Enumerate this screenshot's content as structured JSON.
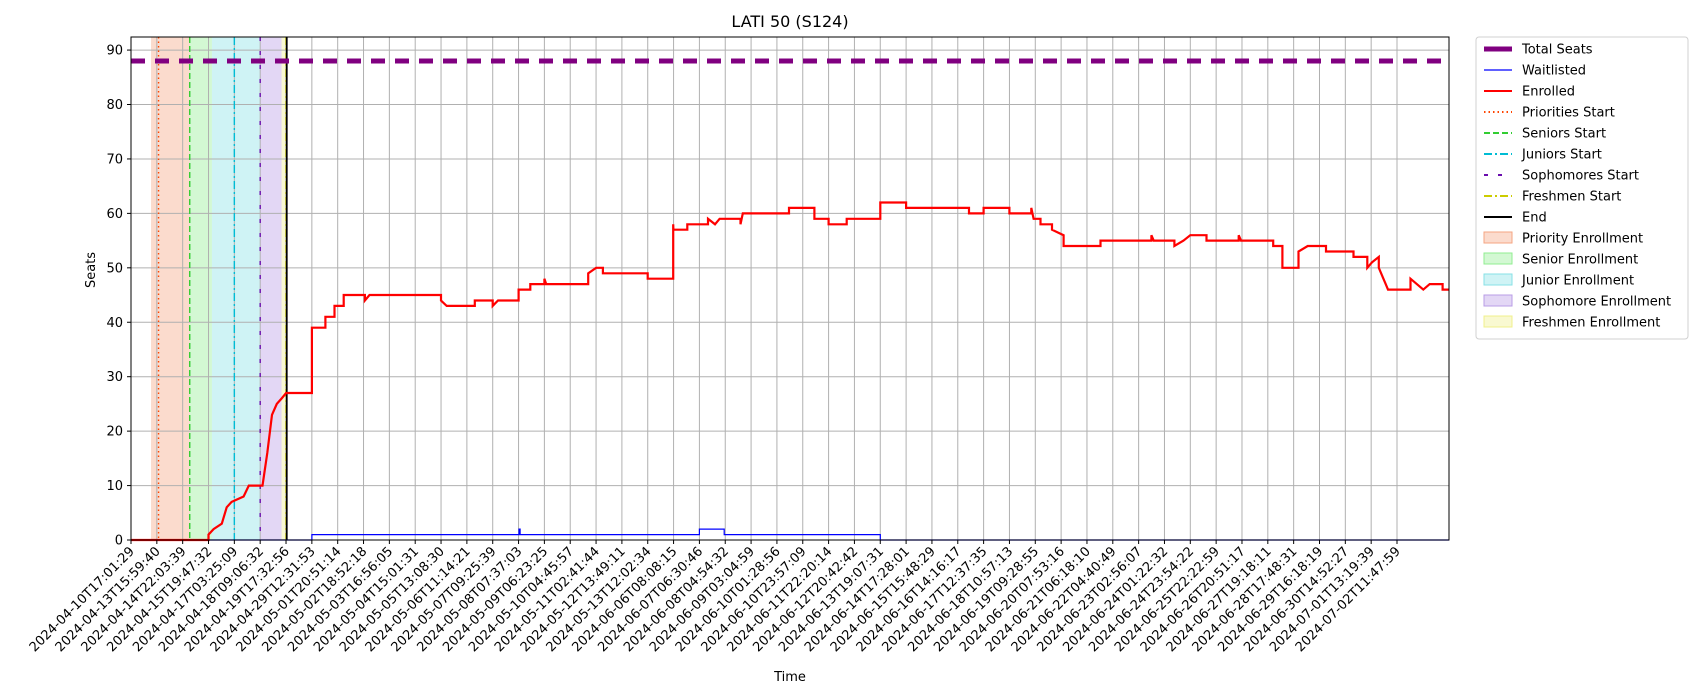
{
  "chart_data": {
    "type": "line",
    "title": "LATI 50 (S124)",
    "xlabel": "Time",
    "ylabel": "Seats",
    "ylim": [
      0,
      92.4
    ],
    "yticks": [
      0,
      10,
      20,
      30,
      40,
      50,
      60,
      70,
      80,
      90
    ],
    "grid": true,
    "legend_position": "outside-right",
    "xlim": [
      "2024-04-10T17:01:29",
      "2024-07-03T04:00:00"
    ],
    "xtick_labels": [
      "2024-04-10T17:01:29",
      "2024-04-13T15:59:40",
      "2024-04-14T22:03:39",
      "2024-04-15T19:47:32",
      "2024-04-17T03:25:09",
      "2024-04-18T09:06:32",
      "2024-04-19T17:32:56",
      "2024-04-29T12:31:53",
      "2024-05-01T20:51:14",
      "2024-05-02T18:52:18",
      "2024-05-03T16:56:05",
      "2024-05-04T15:01:31",
      "2024-05-05T13:08:30",
      "2024-05-06T11:14:21",
      "2024-05-07T09:25:39",
      "2024-05-08T07:37:03",
      "2024-05-09T06:23:25",
      "2024-05-10T04:45:57",
      "2024-05-11T02:41:44",
      "2024-05-12T13:49:11",
      "2024-05-13T12:02:34",
      "2024-06-06T08:08:15",
      "2024-06-07T06:30:46",
      "2024-06-08T04:54:32",
      "2024-06-09T03:04:59",
      "2024-06-10T01:28:56",
      "2024-06-10T23:57:09",
      "2024-06-11T22:20:14",
      "2024-06-12T20:42:42",
      "2024-06-13T19:07:31",
      "2024-06-14T17:28:01",
      "2024-06-15T15:48:29",
      "2024-06-16T14:16:17",
      "2024-06-17T12:37:35",
      "2024-06-18T10:57:13",
      "2024-06-19T09:28:55",
      "2024-06-20T07:53:16",
      "2024-06-21T06:18:10",
      "2024-06-22T04:40:49",
      "2024-06-23T02:56:07",
      "2024-06-24T01:22:32",
      "2024-06-24T23:54:22",
      "2024-06-25T22:22:59",
      "2024-06-26T20:51:17",
      "2024-06-27T19:18:11",
      "2024-06-28T17:48:31",
      "2024-06-29T16:18:19",
      "2024-06-30T14:52:27",
      "2024-07-01T13:19:39",
      "2024-07-02T11:47:59"
    ],
    "series": [
      {
        "name": "Total Seats",
        "color": "#800080",
        "style": "dashed-thick",
        "x": [
          "2024-04-10T17:01:29",
          "2024-07-03T04:00:00"
        ],
        "y": [
          88,
          88
        ]
      },
      {
        "name": "Waitlisted",
        "color": "#0000ff",
        "style": "step",
        "points": [
          [
            "2024-04-10T17:01:29",
            0
          ],
          [
            "2024-04-29T12:31:53",
            0
          ],
          [
            "2024-04-29T12:31:53",
            1
          ],
          [
            "2024-05-08T08:00:00",
            1
          ],
          [
            "2024-05-08T08:00:00",
            2
          ],
          [
            "2024-05-08T09:00:00",
            2
          ],
          [
            "2024-05-08T09:00:00",
            1
          ],
          [
            "2024-06-07T06:30:46",
            1
          ],
          [
            "2024-06-07T06:30:46",
            2
          ],
          [
            "2024-06-08T04:00:00",
            2
          ],
          [
            "2024-06-08T04:00:00",
            1
          ],
          [
            "2024-06-13T19:07:31",
            1
          ],
          [
            "2024-06-13T19:07:31",
            0
          ],
          [
            "2024-07-03T04:00:00",
            0
          ]
        ]
      },
      {
        "name": "Enrolled",
        "color": "#ff0000",
        "style": "step",
        "points": [
          [
            "2024-04-10T17:01:29",
            0
          ],
          [
            "2024-04-15T19:47:32",
            0
          ],
          [
            "2024-04-15T19:47:32",
            1
          ],
          [
            "2024-04-16T02:00:00",
            2
          ],
          [
            "2024-04-16T12:00:00",
            3
          ],
          [
            "2024-04-16T18:00:00",
            6
          ],
          [
            "2024-04-17T00:00:00",
            7
          ],
          [
            "2024-04-17T14:00:00",
            8
          ],
          [
            "2024-04-17T20:00:00",
            10
          ],
          [
            "2024-04-18T12:00:00",
            10
          ],
          [
            "2024-04-18T14:00:00",
            12
          ],
          [
            "2024-04-18T18:00:00",
            16
          ],
          [
            "2024-04-19T00:00:00",
            23
          ],
          [
            "2024-04-19T06:00:00",
            25
          ],
          [
            "2024-04-19T12:00:00",
            26
          ],
          [
            "2024-04-19T18:00:00",
            27
          ],
          [
            "2024-04-29T12:31:53",
            27
          ],
          [
            "2024-04-29T12:31:53",
            39
          ],
          [
            "2024-04-30T18:00:00",
            39
          ],
          [
            "2024-04-30T18:00:00",
            41
          ],
          [
            "2024-05-01T14:00:00",
            41
          ],
          [
            "2024-05-01T14:00:00",
            43
          ],
          [
            "2024-05-02T02:00:00",
            43
          ],
          [
            "2024-05-02T02:00:00",
            45
          ],
          [
            "2024-05-02T20:00:00",
            45
          ],
          [
            "2024-05-02T20:00:00",
            44
          ],
          [
            "2024-05-03T00:00:00",
            45
          ],
          [
            "2024-05-05T13:08:30",
            45
          ],
          [
            "2024-05-05T13:08:30",
            44
          ],
          [
            "2024-05-05T18:00:00",
            43
          ],
          [
            "2024-05-06T18:00:00",
            43
          ],
          [
            "2024-05-06T18:00:00",
            44
          ],
          [
            "2024-05-07T09:25:39",
            44
          ],
          [
            "2024-05-07T09:25:39",
            43
          ],
          [
            "2024-05-07T14:00:00",
            44
          ],
          [
            "2024-05-08T07:37:03",
            44
          ],
          [
            "2024-05-08T07:37:03",
            46
          ],
          [
            "2024-05-08T18:00:00",
            46
          ],
          [
            "2024-05-08T18:00:00",
            47
          ],
          [
            "2024-05-09T06:23:25",
            47
          ],
          [
            "2024-05-09T06:23:25",
            48
          ],
          [
            "2024-05-09T08:00:00",
            47
          ],
          [
            "2024-05-10T20:00:00",
            47
          ],
          [
            "2024-05-10T20:00:00",
            49
          ],
          [
            "2024-05-11T02:41:44",
            50
          ],
          [
            "2024-05-11T12:00:00",
            50
          ],
          [
            "2024-05-11T12:00:00",
            49
          ],
          [
            "2024-05-13T12:02:34",
            49
          ],
          [
            "2024-05-13T12:02:34",
            48
          ],
          [
            "2024-06-06T00:00:00",
            48
          ],
          [
            "2024-06-06T00:00:00",
            58
          ],
          [
            "2024-06-06T04:00:00",
            57
          ],
          [
            "2024-06-06T20:00:00",
            57
          ],
          [
            "2024-06-06T20:00:00",
            58
          ],
          [
            "2024-06-07T14:00:00",
            58
          ],
          [
            "2024-06-07T14:00:00",
            59
          ],
          [
            "2024-06-07T20:00:00",
            58
          ],
          [
            "2024-06-08T00:00:00",
            59
          ],
          [
            "2024-06-08T18:00:00",
            59
          ],
          [
            "2024-06-08T18:00:00",
            58
          ],
          [
            "2024-06-08T20:00:00",
            60
          ],
          [
            "2024-06-10T12:00:00",
            60
          ],
          [
            "2024-06-10T12:00:00",
            61
          ],
          [
            "2024-06-11T10:00:00",
            61
          ],
          [
            "2024-06-11T10:00:00",
            59
          ],
          [
            "2024-06-11T22:20:14",
            59
          ],
          [
            "2024-06-11T22:20:14",
            58
          ],
          [
            "2024-06-12T14:00:00",
            58
          ],
          [
            "2024-06-12T14:00:00",
            59
          ],
          [
            "2024-06-13T19:07:31",
            59
          ],
          [
            "2024-06-13T19:07:31",
            62
          ],
          [
            "2024-06-14T17:28:01",
            62
          ],
          [
            "2024-06-14T17:28:01",
            61
          ],
          [
            "2024-06-17T00:00:00",
            61
          ],
          [
            "2024-06-17T00:00:00",
            60
          ],
          [
            "2024-06-17T12:37:35",
            60
          ],
          [
            "2024-06-17T12:37:35",
            61
          ],
          [
            "2024-06-18T10:57:13",
            61
          ],
          [
            "2024-06-18T10:57:13",
            60
          ],
          [
            "2024-06-19T06:00:00",
            60
          ],
          [
            "2024-06-19T06:00:00",
            61
          ],
          [
            "2024-06-19T08:00:00",
            59
          ],
          [
            "2024-06-19T14:00:00",
            59
          ],
          [
            "2024-06-19T14:00:00",
            58
          ],
          [
            "2024-06-20T00:00:00",
            58
          ],
          [
            "2024-06-20T00:00:00",
            57
          ],
          [
            "2024-06-20T10:00:00",
            56
          ],
          [
            "2024-06-20T10:00:00",
            54
          ],
          [
            "2024-06-21T18:00:00",
            54
          ],
          [
            "2024-06-21T18:00:00",
            55
          ],
          [
            "2024-06-23T14:00:00",
            55
          ],
          [
            "2024-06-23T14:00:00",
            56
          ],
          [
            "2024-06-23T16:00:00",
            55
          ],
          [
            "2024-06-24T10:00:00",
            55
          ],
          [
            "2024-06-24T10:00:00",
            54
          ],
          [
            "2024-06-24T18:00:00",
            55
          ],
          [
            "2024-06-24T23:54:22",
            56
          ],
          [
            "2024-06-25T14:00:00",
            56
          ],
          [
            "2024-06-25T14:00:00",
            55
          ],
          [
            "2024-06-26T18:00:00",
            55
          ],
          [
            "2024-06-26T18:00:00",
            56
          ],
          [
            "2024-06-26T20:00:00",
            55
          ],
          [
            "2024-06-28T00:00:00",
            55
          ],
          [
            "2024-06-28T00:00:00",
            54
          ],
          [
            "2024-06-28T08:00:00",
            54
          ],
          [
            "2024-06-28T08:00:00",
            50
          ],
          [
            "2024-06-28T22:00:00",
            50
          ],
          [
            "2024-06-28T22:00:00",
            53
          ],
          [
            "2024-06-29T06:00:00",
            54
          ],
          [
            "2024-06-29T22:00:00",
            54
          ],
          [
            "2024-06-29T22:00:00",
            53
          ],
          [
            "2024-06-30T22:00:00",
            53
          ],
          [
            "2024-06-30T22:00:00",
            52
          ],
          [
            "2024-07-01T10:00:00",
            52
          ],
          [
            "2024-07-01T10:00:00",
            50
          ],
          [
            "2024-07-01T14:00:00",
            51
          ],
          [
            "2024-07-01T20:00:00",
            52
          ],
          [
            "2024-07-01T20:00:00",
            50
          ],
          [
            "2024-07-02T00:00:00",
            48
          ],
          [
            "2024-07-02T02:00:00",
            47
          ],
          [
            "2024-07-02T04:00:00",
            46
          ],
          [
            "2024-07-02T16:00:00",
            46
          ],
          [
            "2024-07-02T16:00:00",
            48
          ],
          [
            "2024-07-02T20:00:00",
            46
          ],
          [
            "2024-07-02T22:00:00",
            47
          ],
          [
            "2024-07-03T02:00:00",
            47
          ],
          [
            "2024-07-03T02:00:00",
            46
          ],
          [
            "2024-07-03T04:00:00",
            46
          ]
        ]
      }
    ],
    "phase_lines": [
      {
        "name": "Priorities Start",
        "color": "#ff4500",
        "style": "dotted",
        "x": "2024-04-13T18:00:00"
      },
      {
        "name": "Seniors Start",
        "color": "#32cd32",
        "style": "dashed",
        "x": "2024-04-15T04:00:00"
      },
      {
        "name": "Juniors Start",
        "color": "#00bcd4",
        "style": "dashdot",
        "x": "2024-04-17T03:25:09"
      },
      {
        "name": "Sophomores Start",
        "color": "#6a0dad",
        "style": "loosedash",
        "x": "2024-04-18T09:06:32"
      },
      {
        "name": "Freshmen Start",
        "color": "#cccc00",
        "style": "dashdot",
        "x": "2024-04-19T17:32:56"
      },
      {
        "name": "End",
        "color": "#000000",
        "style": "solid",
        "x": "2024-04-20T00:00:00"
      }
    ],
    "phase_spans": [
      {
        "name": "Priority Enrollment",
        "color": "#f4a582",
        "from": "2024-04-13T00:00:00",
        "to": "2024-04-15T04:00:00"
      },
      {
        "name": "Senior Enrollment",
        "color": "#90ee90",
        "from": "2024-04-15T04:00:00",
        "to": "2024-04-16T00:00:00"
      },
      {
        "name": "Junior Enrollment",
        "color": "#87e0e6",
        "from": "2024-04-16T00:00:00",
        "to": "2024-04-18T09:06:32"
      },
      {
        "name": "Sophomore Enrollment",
        "color": "#b89ce6",
        "from": "2024-04-18T09:06:32",
        "to": "2024-04-19T12:00:00"
      },
      {
        "name": "Freshmen Enrollment",
        "color": "#f0f08c",
        "from": "2024-04-19T12:00:00",
        "to": "2024-04-20T00:00:00"
      }
    ],
    "legend": [
      {
        "label": "Total Seats",
        "kind": "line",
        "color": "#800080",
        "style": "dashed-thick"
      },
      {
        "label": "Waitlisted",
        "kind": "line",
        "color": "#0000ff",
        "style": "solid-thin"
      },
      {
        "label": "Enrolled",
        "kind": "line",
        "color": "#ff0000",
        "style": "solid"
      },
      {
        "label": "Priorities Start",
        "kind": "line",
        "color": "#ff4500",
        "style": "dotted"
      },
      {
        "label": "Seniors Start",
        "kind": "line",
        "color": "#32cd32",
        "style": "dashed"
      },
      {
        "label": "Juniors Start",
        "kind": "line",
        "color": "#00bcd4",
        "style": "dashdot"
      },
      {
        "label": "Sophomores Start",
        "kind": "line",
        "color": "#6a0dad",
        "style": "loosedash"
      },
      {
        "label": "Freshmen Start",
        "kind": "line",
        "color": "#cccc00",
        "style": "dashdot"
      },
      {
        "label": "End",
        "kind": "line",
        "color": "#000000",
        "style": "solid"
      },
      {
        "label": "Priority Enrollment",
        "kind": "patch",
        "color": "#f4a582"
      },
      {
        "label": "Senior Enrollment",
        "kind": "patch",
        "color": "#90ee90"
      },
      {
        "label": "Junior Enrollment",
        "kind": "patch",
        "color": "#87e0e6"
      },
      {
        "label": "Sophomore Enrollment",
        "kind": "patch",
        "color": "#b89ce6"
      },
      {
        "label": "Freshmen Enrollment",
        "kind": "patch",
        "color": "#f0f08c"
      }
    ]
  }
}
